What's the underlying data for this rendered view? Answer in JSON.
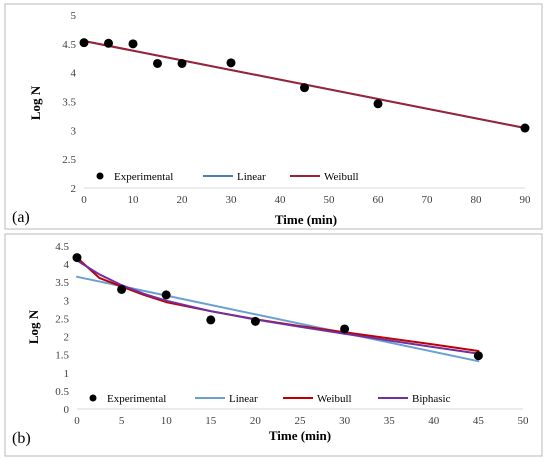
{
  "chart_data": [
    {
      "type": "line",
      "panel_label": "(a)",
      "xlabel": "Time (min)",
      "ylabel": "Log N",
      "xlim": [
        0,
        90
      ],
      "ylim": [
        2,
        5
      ],
      "xticks": [
        0,
        10,
        20,
        30,
        40,
        50,
        60,
        70,
        80,
        90
      ],
      "yticks": [
        2,
        2.5,
        3,
        3.5,
        4,
        4.5,
        5
      ],
      "grid": false,
      "legend_position": "bottom",
      "series": [
        {
          "name": "Experimental",
          "kind": "scatter",
          "color": "#000000",
          "x": [
            0,
            5,
            10,
            15,
            20,
            30,
            45,
            60,
            90
          ],
          "y": [
            4.52,
            4.51,
            4.5,
            4.16,
            4.16,
            4.17,
            3.74,
            3.46,
            3.04
          ]
        },
        {
          "name": "Linear",
          "kind": "line",
          "color": "#4a7ebb",
          "x": [
            0,
            90
          ],
          "y": [
            4.55,
            3.04
          ]
        },
        {
          "name": "Weibull",
          "kind": "line",
          "color": "#9b2335",
          "x": [
            0,
            90
          ],
          "y": [
            4.55,
            3.04
          ]
        }
      ]
    },
    {
      "type": "line",
      "panel_label": "(b)",
      "xlabel": "Time (min)",
      "ylabel": "Log N",
      "xlim": [
        0,
        50
      ],
      "ylim": [
        0,
        4.5
      ],
      "xticks": [
        0,
        5,
        10,
        15,
        20,
        25,
        30,
        35,
        40,
        45,
        50
      ],
      "yticks": [
        0,
        0.5,
        1,
        1.5,
        2,
        2.5,
        3,
        3.5,
        4,
        4.5
      ],
      "grid": false,
      "legend_position": "bottom",
      "series": [
        {
          "name": "Experimental",
          "kind": "scatter",
          "color": "#000000",
          "x": [
            0,
            5,
            10,
            15,
            20,
            30,
            45
          ],
          "y": [
            4.18,
            3.3,
            3.15,
            2.46,
            2.42,
            2.21,
            1.47
          ]
        },
        {
          "name": "Linear",
          "kind": "line",
          "color": "#6a9fd1",
          "x": [
            0,
            45
          ],
          "y": [
            3.65,
            1.32
          ]
        },
        {
          "name": "Weibull",
          "kind": "line",
          "color": "#c00000",
          "x": [
            0,
            2.5,
            5,
            7.5,
            10,
            15,
            20,
            25,
            30,
            35,
            40,
            45
          ],
          "y": [
            4.18,
            3.62,
            3.38,
            3.15,
            2.95,
            2.7,
            2.48,
            2.29,
            2.12,
            1.95,
            1.78,
            1.6
          ]
        },
        {
          "name": "Biphasic",
          "kind": "line",
          "color": "#7030a0",
          "x": [
            0,
            2.5,
            5,
            7.5,
            10,
            15,
            20,
            25,
            30,
            35,
            40,
            45
          ],
          "y": [
            4.1,
            3.72,
            3.42,
            3.18,
            2.99,
            2.7,
            2.47,
            2.27,
            2.08,
            1.89,
            1.71,
            1.53
          ]
        }
      ]
    }
  ]
}
